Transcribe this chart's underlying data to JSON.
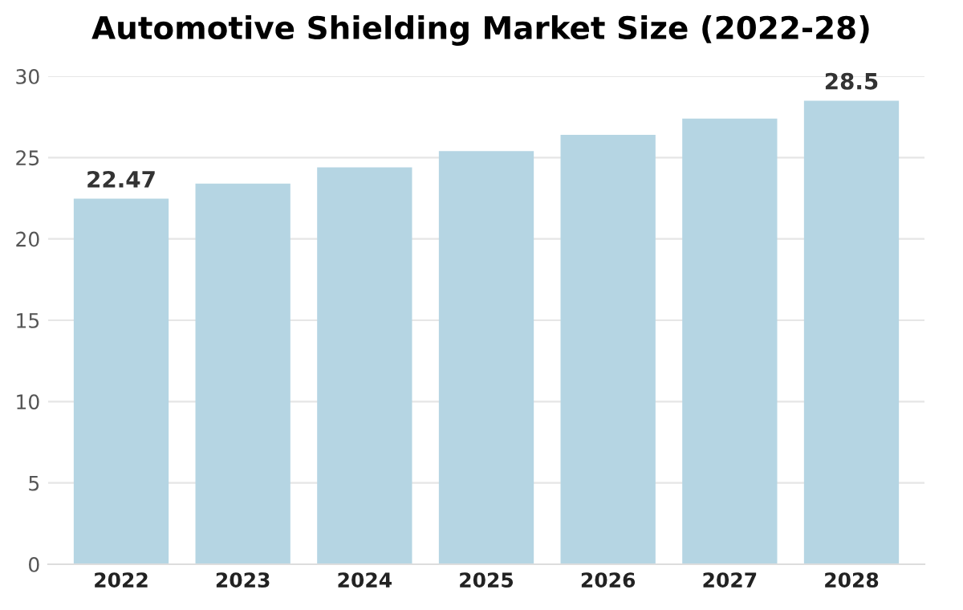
{
  "chart_data": {
    "type": "bar",
    "title": "Automotive Shielding Market Size (2022-28)",
    "categories": [
      "2022",
      "2023",
      "2024",
      "2025",
      "2026",
      "2027",
      "2028"
    ],
    "values": [
      22.47,
      23.4,
      24.4,
      25.4,
      26.4,
      27.4,
      28.5
    ],
    "value_labels": [
      "22.47",
      null,
      null,
      null,
      null,
      null,
      "28.5"
    ],
    "color": "#b5d5e3",
    "ylim": [
      0,
      30
    ],
    "yticks": [
      0,
      5,
      10,
      15,
      20,
      25,
      30
    ],
    "grid": "y"
  }
}
